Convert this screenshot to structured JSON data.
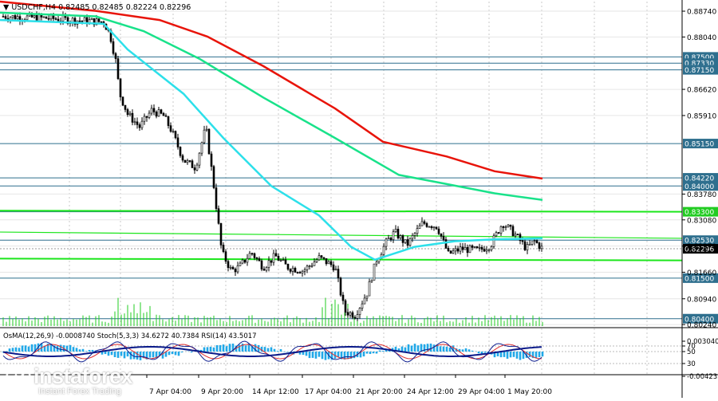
{
  "chart_data": {
    "type": "line",
    "header": "▼ USDCHF,H4  0.82485 0.82485 0.82224 0.82296",
    "y_ticks": [
      "0.88740",
      "0.88040",
      "0.86620",
      "0.85910",
      "0.83780",
      "0.83080",
      "0.82370",
      "0.81660",
      "0.80940",
      "0.80240"
    ],
    "ylim": [
      0.802,
      0.89
    ],
    "levels": [
      {
        "label": "0.87500",
        "value": 0.875,
        "style": "line"
      },
      {
        "label": "0.87330",
        "value": 0.8733,
        "style": "line"
      },
      {
        "label": "0.87150",
        "value": 0.8715,
        "style": "line"
      },
      {
        "label": "0.85150",
        "value": 0.8515,
        "style": "line"
      },
      {
        "label": "0.84220",
        "value": 0.8422,
        "style": "line"
      },
      {
        "label": "0.84000",
        "value": 0.84,
        "style": "line"
      },
      {
        "label": "0.83300",
        "value": 0.833,
        "style": "highlight"
      },
      {
        "label": "0.82530",
        "value": 0.8253,
        "style": "line"
      },
      {
        "label": "0.82296",
        "value": 0.82296,
        "style": "price"
      },
      {
        "label": "0.81500",
        "value": 0.815,
        "style": "line"
      },
      {
        "label": "0.80400",
        "value": 0.804,
        "style": "line"
      }
    ],
    "x_labels": [
      "7 Apr 04:00",
      "9 Apr 20:00",
      "14 Apr 12:00",
      "17 Apr 04:00",
      "21 Apr 20:00",
      "24 Apr 12:00",
      "29 Apr 04:00",
      "1 May 20:00"
    ],
    "indicator_header": "OsMA(12,26,9) -0.0008740  Stoch(5,3,3) 34.6272 40.7384  RSI(14) 43.5017",
    "indicator_ticks": [
      "0.003040",
      "70",
      "50",
      "30",
      "-0.004235"
    ],
    "colors": {
      "candles": "#000000",
      "ma_red": "#e8140a",
      "ma_green": "#19e28a",
      "ma_cyan": "#2de0ea",
      "level": "#2e6f8e",
      "highlight": "#22ee22",
      "osma": "#20a8e8",
      "stoch_main": "#102090",
      "stoch_signal": "#e03030"
    }
  },
  "watermark": {
    "name": "instaforex",
    "tagline": "Instant Forex Trading"
  }
}
